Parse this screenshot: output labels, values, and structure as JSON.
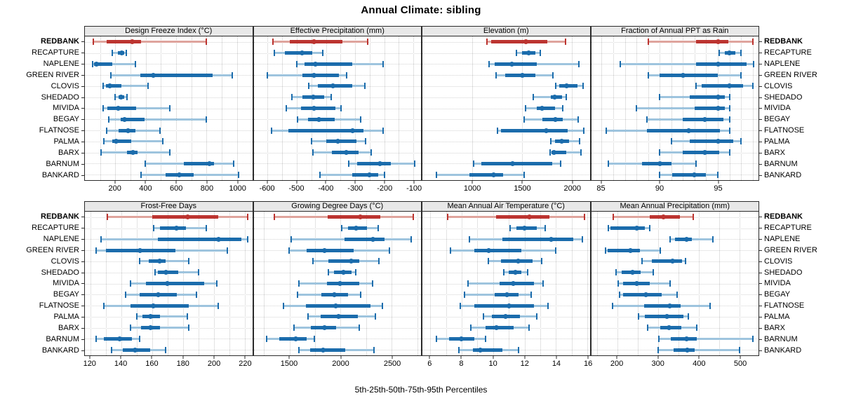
{
  "title": "Annual Climate: sibling",
  "footer": "5th-25th-50th-75th-95th Percentiles",
  "colors": {
    "highlight": "#bc3430",
    "highlight_light": "#dfa49d",
    "normal": "#1b6cac",
    "normal_light": "#9ec4de",
    "strip_bg": "#e8e8e8",
    "panel_border": "#2b2b2b",
    "grid": "#c7c7c7"
  },
  "chart_data": {
    "type": "dot-whisker-percentiles",
    "percentile_labels": [
      "5th",
      "25th",
      "50th",
      "75th",
      "95th"
    ],
    "legend_note": "5th-25th-50th-75th-95th Percentiles",
    "highlight_site": "REDBANK",
    "sites": [
      "REDBANK",
      "RECAPTURE",
      "NAPLENE",
      "GREEN RIVER",
      "CLOVIS",
      "SHEDADO",
      "MIVIDA",
      "BEGAY",
      "FLATNOSE",
      "PALMA",
      "BARX",
      "BARNUM",
      "BANKARD"
    ],
    "panel_grid": {
      "rows": 2,
      "cols": 4
    },
    "panels": [
      {
        "title": "Design Freeze Index (°C)",
        "row": 0,
        "domain": [
          0,
          1100
        ],
        "ticks": [
          200,
          400,
          600,
          800,
          1000
        ],
        "minor_step": 100,
        "values": [
          [
            55,
            145,
            310,
            370,
            800
          ],
          [
            180,
            218,
            240,
            256,
            272
          ],
          [
            50,
            58,
            78,
            182,
            330
          ],
          [
            170,
            365,
            450,
            840,
            970
          ],
          [
            118,
            138,
            165,
            238,
            415
          ],
          [
            198,
            220,
            238,
            260,
            276
          ],
          [
            118,
            146,
            218,
            335,
            560
          ],
          [
            155,
            234,
            262,
            390,
            800
          ],
          [
            145,
            222,
            285,
            330,
            495
          ],
          [
            125,
            180,
            206,
            305,
            510
          ],
          [
            108,
            275,
            314,
            345,
            560
          ],
          [
            395,
            650,
            820,
            850,
            980
          ],
          [
            370,
            530,
            620,
            715,
            1010
          ]
        ]
      },
      {
        "title": "Effective Precipitation (mm)",
        "row": 0,
        "domain": [
          -648,
          -74
        ],
        "ticks": [
          -600,
          -500,
          -400,
          -300,
          -200,
          -100
        ],
        "minor_step": 50,
        "values": [
          [
            -581,
            -523,
            -442,
            -343,
            -258
          ],
          [
            -576,
            -541,
            -482,
            -447,
            -412
          ],
          [
            -500,
            -474,
            -437,
            -309,
            -204
          ],
          [
            -602,
            -481,
            -442,
            -355,
            -329
          ],
          [
            -458,
            -427,
            -375,
            -311,
            -267
          ],
          [
            -516,
            -481,
            -444,
            -405,
            -383
          ],
          [
            -537,
            -485,
            -442,
            -368,
            -348
          ],
          [
            -497,
            -462,
            -423,
            -370,
            -281
          ],
          [
            -586,
            -529,
            -308,
            -272,
            -204
          ],
          [
            -449,
            -399,
            -358,
            -295,
            -265
          ],
          [
            -444,
            -379,
            -330,
            -289,
            -245
          ],
          [
            -321,
            -292,
            -214,
            -177,
            -95
          ],
          [
            -421,
            -310,
            -250,
            -220,
            -198
          ]
        ]
      },
      {
        "title": "Elevation (m)",
        "row": 0,
        "domain": [
          495,
          2180
        ],
        "ticks": [
          1000,
          1500,
          2000
        ],
        "minor_step": 500,
        "values": [
          [
            1145,
            1190,
            1540,
            1750,
            1935
          ],
          [
            1440,
            1495,
            1565,
            1635,
            1685
          ],
          [
            1165,
            1225,
            1395,
            1650,
            2070
          ],
          [
            1240,
            1330,
            1505,
            1635,
            1810
          ],
          [
            1835,
            1870,
            1950,
            2055,
            2115
          ],
          [
            1610,
            1790,
            1830,
            1900,
            1945
          ],
          [
            1535,
            1645,
            1700,
            1830,
            1905
          ],
          [
            1520,
            1700,
            1835,
            1910,
            2065
          ],
          [
            1250,
            1285,
            1745,
            1955,
            2120
          ],
          [
            1790,
            1830,
            1895,
            1975,
            2075
          ],
          [
            1780,
            1795,
            1820,
            1945,
            2095
          ],
          [
            1010,
            1085,
            1405,
            1805,
            1890
          ],
          [
            635,
            970,
            1215,
            1310,
            1520
          ]
        ]
      },
      {
        "title": "Fraction of Annual PPT as Rain",
        "row": 0,
        "domain": [
          84.1,
          98.5
        ],
        "ticks": [
          85,
          90,
          95
        ],
        "minor_step": 1,
        "values": [
          [
            89,
            93.1,
            95,
            95.9,
            98
          ],
          [
            95.1,
            95.6,
            96,
            96.5,
            97
          ],
          [
            86.6,
            93.1,
            95,
            97.5,
            98.1
          ],
          [
            89,
            90,
            92,
            95,
            97
          ],
          [
            93.1,
            93.6,
            96,
            97.2,
            98
          ],
          [
            90,
            92.6,
            95,
            95.6,
            96
          ],
          [
            88,
            93,
            95,
            95.6,
            96
          ],
          [
            88.9,
            92,
            93.9,
            95.5,
            96
          ],
          [
            85.4,
            88.9,
            92.5,
            95.2,
            96
          ],
          [
            91,
            92.6,
            95,
            96.3,
            97
          ],
          [
            90,
            92,
            93.9,
            95.1,
            96
          ],
          [
            85.6,
            88.5,
            90,
            91,
            93.1
          ],
          [
            90,
            91.1,
            93,
            94,
            95
          ]
        ]
      },
      {
        "title": "Frost-Free Days",
        "row": 1,
        "domain": [
          116.5,
          225
        ],
        "ticks": [
          120,
          140,
          160,
          180,
          200,
          220
        ],
        "minor_step": 10,
        "values": [
          [
            131,
            160,
            183,
            203,
            222
          ],
          [
            161,
            165,
            176,
            182,
            195
          ],
          [
            127,
            164,
            203,
            218,
            222
          ],
          [
            124,
            130,
            152,
            175,
            209
          ],
          [
            152,
            158,
            165,
            169,
            184
          ],
          [
            162,
            164,
            169,
            177,
            190
          ],
          [
            146,
            156,
            170,
            194,
            202
          ],
          [
            143,
            152,
            164,
            176,
            189
          ],
          [
            129,
            146,
            161,
            184,
            203
          ],
          [
            150,
            154,
            159,
            165,
            183
          ],
          [
            146,
            153,
            159,
            165,
            184
          ],
          [
            124,
            129,
            139,
            147,
            152
          ],
          [
            134,
            141,
            149,
            159,
            169
          ]
        ]
      },
      {
        "title": "Growing Degree Days (°C)",
        "row": 1,
        "domain": [
          1150,
          2785
        ],
        "ticks": [
          1500,
          2000,
          2500
        ],
        "minor_step": 250,
        "values": [
          [
            1355,
            1875,
            2190,
            2390,
            2712
          ],
          [
            2010,
            2070,
            2150,
            2260,
            2365
          ],
          [
            1515,
            2035,
            2315,
            2430,
            2690
          ],
          [
            1495,
            1665,
            1840,
            2125,
            2475
          ],
          [
            1730,
            1880,
            2100,
            2180,
            2375
          ],
          [
            1880,
            1935,
            2025,
            2105,
            2145
          ],
          [
            1595,
            1865,
            1990,
            2180,
            2310
          ],
          [
            1580,
            1810,
            1940,
            2070,
            2195
          ],
          [
            1440,
            1660,
            1950,
            2290,
            2410
          ],
          [
            1680,
            1805,
            1980,
            2170,
            2340
          ],
          [
            1545,
            1710,
            1840,
            1955,
            2180
          ],
          [
            1275,
            1400,
            1560,
            1665,
            1745
          ],
          [
            1595,
            1705,
            1830,
            2045,
            2325
          ]
        ]
      },
      {
        "title": "Mean Annual Air Temperature (°C)",
        "row": 1,
        "domain": [
          5.5,
          16.15
        ],
        "ticks": [
          6,
          8,
          10,
          12,
          14,
          16
        ],
        "minor_step": 1,
        "values": [
          [
            7.1,
            10.2,
            12.3,
            13.6,
            15.8
          ],
          [
            11.1,
            11.5,
            12.0,
            12.8,
            13.3
          ],
          [
            8.5,
            10.6,
            13.7,
            15.1,
            15.7
          ],
          [
            7.3,
            8.8,
            9.7,
            11.8,
            14.0
          ],
          [
            9.7,
            10.5,
            11.6,
            12.5,
            13.1
          ],
          [
            10.7,
            11.0,
            11.4,
            11.8,
            12.2
          ],
          [
            8.4,
            10.4,
            11.3,
            12.6,
            13.2
          ],
          [
            8.2,
            10.1,
            10.9,
            11.6,
            12.4
          ],
          [
            7.9,
            8.8,
            11.0,
            12.6,
            13.5
          ],
          [
            9.4,
            9.9,
            10.8,
            11.7,
            12.8
          ],
          [
            8.6,
            9.5,
            10.2,
            11.3,
            12.3
          ],
          [
            6.4,
            7.2,
            8.0,
            8.8,
            9.5
          ],
          [
            7.8,
            8.7,
            9.2,
            10.6,
            11.6
          ]
        ]
      },
      {
        "title": "Mean Annual Precipitation (mm)",
        "row": 1,
        "domain": [
          136,
          546
        ],
        "ticks": [
          200,
          300,
          400,
          500
        ],
        "minor_step": 50,
        "values": [
          [
            190,
            280,
            313,
            353,
            386
          ],
          [
            178,
            183,
            248,
            268,
            280
          ],
          [
            330,
            342,
            369,
            383,
            434
          ],
          [
            171,
            176,
            232,
            255,
            305
          ],
          [
            260,
            285,
            335,
            358,
            368
          ],
          [
            197,
            210,
            238,
            258,
            288
          ],
          [
            203,
            215,
            248,
            280,
            330
          ],
          [
            205,
            215,
            270,
            308,
            347
          ],
          [
            188,
            266,
            328,
            355,
            428
          ],
          [
            252,
            267,
            322,
            362,
            374
          ],
          [
            274,
            305,
            326,
            357,
            394
          ],
          [
            302,
            331,
            370,
            394,
            533
          ],
          [
            300,
            338,
            371,
            389,
            500
          ]
        ]
      }
    ]
  }
}
